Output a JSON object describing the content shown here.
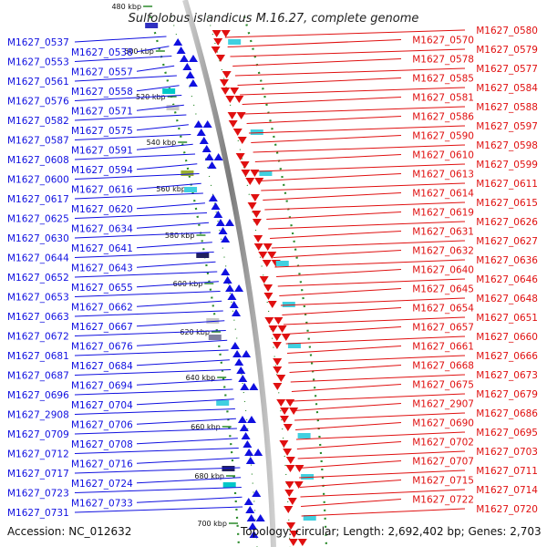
{
  "title": "Sulfolobus islandicus M.16.27, complete genome",
  "accession": "Accession: NC_012632",
  "topology": "Topology: circular; Length: 2,692,402 bp; Genes: 2,703",
  "colors": {
    "plus": "#1010e0",
    "minus": "#e01010",
    "backbone": "#909090",
    "ticks": "#2a8a2a"
  },
  "scale_labels": [
    "480 kbp",
    "500 kbp",
    "520 kbp",
    "540 kbp",
    "560 kbp",
    "580 kbp",
    "600 kbp",
    "620 kbp",
    "640 kbp",
    "660 kbp",
    "680 kbp",
    "700 kbp"
  ],
  "left_labels": [
    "M1627_0537",
    "M1627_0538",
    "M1627_0553",
    "M1627_0557",
    "M1627_0561",
    "M1627_0558",
    "M1627_0576",
    "M1627_0571",
    "M1627_0582",
    "M1627_0575",
    "M1627_0587",
    "M1627_0591",
    "M1627_0608",
    "M1627_0594",
    "M1627_0600",
    "M1627_0616",
    "M1627_0617",
    "M1627_0620",
    "M1627_0625",
    "M1627_0634",
    "M1627_0630",
    "M1627_0641",
    "M1627_0644",
    "M1627_0643",
    "M1627_0652",
    "M1627_0655",
    "M1627_0653",
    "M1627_0662",
    "M1627_0663",
    "M1627_0667",
    "M1627_0672",
    "M1627_0676",
    "M1627_0681",
    "M1627_0684",
    "M1627_0687",
    "M1627_0694",
    "M1627_0696",
    "M1627_0704",
    "M1627_2908",
    "M1627_0706",
    "M1627_0709",
    "M1627_0708",
    "M1627_0712",
    "M1627_0716",
    "M1627_0717",
    "M1627_0724",
    "M1627_0723",
    "M1627_0733",
    "M1627_0731"
  ],
  "right_labels": [
    "M1627_0580",
    "M1627_0570",
    "M1627_0579",
    "M1627_0578",
    "M1627_0577",
    "M1627_0585",
    "M1627_0584",
    "M1627_0581",
    "M1627_0588",
    "M1627_0586",
    "M1627_0597",
    "M1627_0590",
    "M1627_0598",
    "M1627_0610",
    "M1627_0599",
    "M1627_0613",
    "M1627_0611",
    "M1627_0614",
    "M1627_0615",
    "M1627_0619",
    "M1627_0626",
    "M1627_0631",
    "M1627_0627",
    "M1627_0632",
    "M1627_0636",
    "M1627_0640",
    "M1627_0646",
    "M1627_0645",
    "M1627_0648",
    "M1627_0654",
    "M1627_0651",
    "M1627_0657",
    "M1627_0660",
    "M1627_0661",
    "M1627_0666",
    "M1627_0668",
    "M1627_0673",
    "M1627_0675",
    "M1627_0679",
    "M1627_2907",
    "M1627_0686",
    "M1627_0690",
    "M1627_0695",
    "M1627_0702",
    "M1627_0703",
    "M1627_0707",
    "M1627_0711",
    "M1627_0715",
    "M1627_0714",
    "M1627_0722",
    "M1627_0720"
  ]
}
